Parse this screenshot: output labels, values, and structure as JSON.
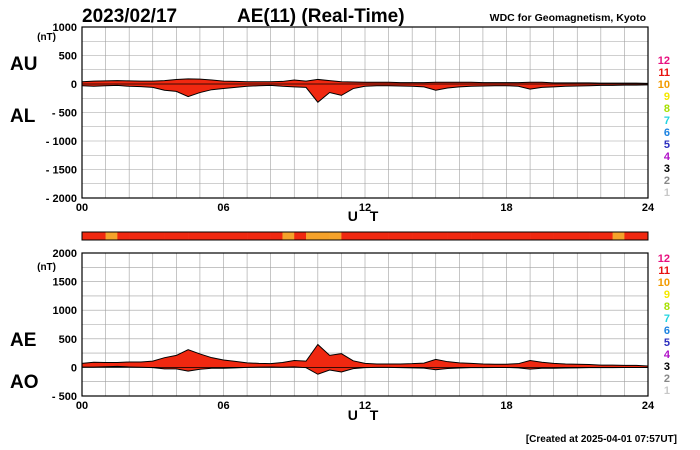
{
  "header": {
    "date": "2023/02/17",
    "title": "AE(11) (Real-Time)",
    "source": "WDC for Geomagnetism, Kyoto"
  },
  "footer": {
    "created": "[Created at 2025-04-01 07:57UT]"
  },
  "chart_data": [
    {
      "type": "area",
      "panel": "AU/AL",
      "labels": {
        "upper": "AU",
        "lower": "AL"
      },
      "ylim": [
        -2000,
        1000
      ],
      "yticks": [
        "1000",
        "500",
        "0",
        "- 500",
        "- 1000",
        "- 1500",
        "- 2000"
      ],
      "ytick_values": [
        1000,
        500,
        0,
        -500,
        -1000,
        -1500,
        -2000
      ],
      "yunit": "(nT)",
      "xlim": [
        0,
        24
      ],
      "xticks": [
        "00",
        "06",
        "12",
        "18",
        "24"
      ],
      "xtick_values": [
        0,
        6,
        12,
        18,
        24
      ],
      "xlabel": "U T",
      "hours": [
        0,
        0.5,
        1,
        1.5,
        2,
        2.5,
        3,
        3.5,
        4,
        4.5,
        5,
        5.5,
        6,
        6.5,
        7,
        7.5,
        8,
        8.5,
        9,
        9.5,
        10,
        10.5,
        11,
        11.5,
        12,
        12.5,
        13,
        13.5,
        14,
        14.5,
        15,
        15.5,
        16,
        16.5,
        17,
        17.5,
        18,
        18.5,
        19,
        19.5,
        20,
        20.5,
        21,
        21.5,
        22,
        22.5,
        23,
        23.5,
        24
      ],
      "AU": [
        40,
        50,
        55,
        60,
        55,
        50,
        50,
        60,
        80,
        90,
        85,
        70,
        50,
        45,
        40,
        40,
        40,
        45,
        70,
        50,
        80,
        60,
        40,
        35,
        30,
        30,
        30,
        25,
        25,
        25,
        30,
        30,
        30,
        30,
        25,
        25,
        25,
        25,
        30,
        30,
        20,
        20,
        20,
        20,
        15,
        15,
        15,
        15,
        10
      ],
      "AL": [
        -30,
        -40,
        -30,
        -25,
        -40,
        -45,
        -60,
        -110,
        -130,
        -220,
        -150,
        -100,
        -80,
        -60,
        -40,
        -30,
        -25,
        -40,
        -50,
        -60,
        -320,
        -150,
        -200,
        -80,
        -40,
        -30,
        -30,
        -35,
        -40,
        -50,
        -110,
        -70,
        -50,
        -40,
        -35,
        -30,
        -30,
        -40,
        -90,
        -60,
        -50,
        -40,
        -35,
        -30,
        -25,
        -25,
        -20,
        -20,
        -15
      ]
    },
    {
      "type": "area",
      "panel": "AE/AO",
      "labels": {
        "upper": "AE",
        "lower": "AO"
      },
      "ylim": [
        -500,
        2000
      ],
      "yticks": [
        "2000",
        "1500",
        "1000",
        "500",
        "0",
        "- 500"
      ],
      "ytick_values": [
        2000,
        1500,
        1000,
        500,
        0,
        -500
      ],
      "yunit": "(nT)",
      "xlim": [
        0,
        24
      ],
      "xticks": [
        "00",
        "06",
        "12",
        "18",
        "24"
      ],
      "xtick_values": [
        0,
        6,
        12,
        18,
        24
      ],
      "xlabel": "U T",
      "hours": [
        0,
        0.5,
        1,
        1.5,
        2,
        2.5,
        3,
        3.5,
        4,
        4.5,
        5,
        5.5,
        6,
        6.5,
        7,
        7.5,
        8,
        8.5,
        9,
        9.5,
        10,
        10.5,
        11,
        11.5,
        12,
        12.5,
        13,
        13.5,
        14,
        14.5,
        15,
        15.5,
        16,
        16.5,
        17,
        17.5,
        18,
        18.5,
        19,
        19.5,
        20,
        20.5,
        21,
        21.5,
        22,
        22.5,
        23,
        23.5,
        24
      ],
      "AE": [
        70,
        90,
        85,
        85,
        95,
        95,
        110,
        170,
        210,
        310,
        235,
        170,
        130,
        105,
        80,
        70,
        65,
        85,
        120,
        110,
        400,
        210,
        240,
        115,
        70,
        60,
        60,
        60,
        65,
        75,
        140,
        100,
        80,
        70,
        60,
        55,
        55,
        65,
        120,
        90,
        70,
        60,
        55,
        50,
        40,
        40,
        35,
        35,
        25
      ],
      "AO": [
        5,
        5,
        12,
        17,
        8,
        2,
        -5,
        -25,
        -25,
        -65,
        -32,
        -15,
        -15,
        -8,
        0,
        5,
        8,
        2,
        10,
        -5,
        -120,
        -45,
        -80,
        -22,
        -5,
        0,
        0,
        -5,
        -8,
        -12,
        -40,
        -20,
        -10,
        -5,
        -5,
        -2,
        -2,
        -8,
        -30,
        -15,
        -15,
        -10,
        -8,
        -5,
        -5,
        -5,
        -2,
        -2,
        -2
      ]
    }
  ],
  "station_strip": {
    "type": "bar",
    "bins": 48,
    "description_of_levels": "stations contributing",
    "values": [
      11,
      11,
      10,
      11,
      11,
      11,
      11,
      11,
      11,
      11,
      11,
      11,
      11,
      11,
      11,
      11,
      11,
      10,
      11,
      10,
      10,
      10,
      11,
      11,
      11,
      11,
      11,
      11,
      11,
      11,
      11,
      11,
      11,
      11,
      11,
      11,
      11,
      11,
      11,
      11,
      11,
      11,
      11,
      11,
      11,
      10,
      11,
      11
    ]
  },
  "legend": {
    "counts": [
      "12",
      "11",
      "10",
      "9",
      "8",
      "7",
      "6",
      "5",
      "4",
      "3",
      "2",
      "1"
    ],
    "colors": [
      "#e8117f",
      "#e8110f",
      "#f29a00",
      "#f5e800",
      "#a6e000",
      "#22d4e0",
      "#1b82e0",
      "#2b2dbe",
      "#b012c8",
      "#000000",
      "#888888",
      "#c8c8c8"
    ]
  },
  "colors": {
    "fill_main": "#f02810",
    "fill_alt": "#f5a22a",
    "outline": "#000000",
    "grid": "#a0a0a0"
  }
}
